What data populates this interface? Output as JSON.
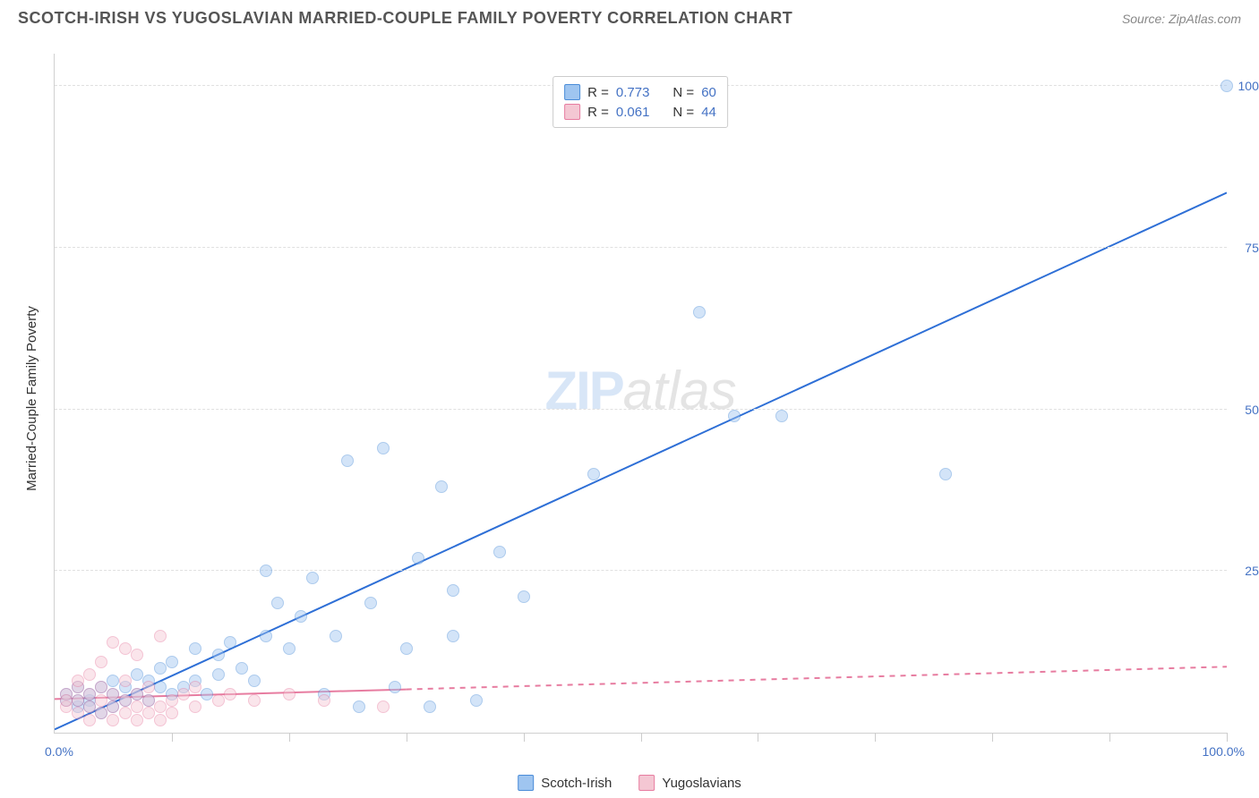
{
  "header": {
    "title": "SCOTCH-IRISH VS YUGOSLAVIAN MARRIED-COUPLE FAMILY POVERTY CORRELATION CHART",
    "source_label": "Source:",
    "source_value": "ZipAtlas.com"
  },
  "ylabel": "Married-Couple Family Poverty",
  "watermark": {
    "part1": "ZIP",
    "part2": "atlas"
  },
  "chart": {
    "type": "scatter",
    "xlim": [
      0,
      100
    ],
    "ylim": [
      0,
      105
    ],
    "grid_color": "#e0e0e0",
    "axis_color": "#d0d0d0",
    "background_color": "#ffffff",
    "tick_label_color": "#4472c4",
    "hgridlines": [
      {
        "y": 25,
        "label": "25.0%"
      },
      {
        "y": 50,
        "label": "50.0%"
      },
      {
        "y": 75,
        "label": "75.0%"
      },
      {
        "y": 100,
        "label": "100.0%"
      }
    ],
    "x_ticks": [
      10,
      20,
      30,
      40,
      50,
      60,
      70,
      80,
      90,
      100
    ],
    "x_origin_label": "0.0%",
    "x_max_label": "100.0%",
    "marker_radius": 7,
    "marker_opacity": 0.45,
    "series": [
      {
        "name": "Scotch-Irish",
        "fill_color": "#9fc5f0",
        "stroke_color": "#4a8cd8",
        "trend": {
          "slope": 0.83,
          "intercept": 0.5,
          "solid_until_x": 100,
          "is_dashed_after": false
        },
        "line_color": "#2e6fd6",
        "line_width": 2,
        "points": [
          [
            1,
            5
          ],
          [
            1,
            6
          ],
          [
            2,
            4
          ],
          [
            2,
            7
          ],
          [
            2,
            5
          ],
          [
            3,
            5
          ],
          [
            3,
            6
          ],
          [
            3,
            4
          ],
          [
            4,
            3
          ],
          [
            4,
            7
          ],
          [
            5,
            6
          ],
          [
            5,
            4
          ],
          [
            5,
            8
          ],
          [
            6,
            7
          ],
          [
            6,
            5
          ],
          [
            7,
            9
          ],
          [
            7,
            6
          ],
          [
            8,
            8
          ],
          [
            8,
            5
          ],
          [
            9,
            10
          ],
          [
            9,
            7
          ],
          [
            10,
            6
          ],
          [
            10,
            11
          ],
          [
            11,
            7
          ],
          [
            12,
            8
          ],
          [
            12,
            13
          ],
          [
            13,
            6
          ],
          [
            14,
            9
          ],
          [
            14,
            12
          ],
          [
            15,
            14
          ],
          [
            16,
            10
          ],
          [
            17,
            8
          ],
          [
            18,
            15
          ],
          [
            18,
            25
          ],
          [
            19,
            20
          ],
          [
            20,
            13
          ],
          [
            21,
            18
          ],
          [
            22,
            24
          ],
          [
            23,
            6
          ],
          [
            24,
            15
          ],
          [
            25,
            42
          ],
          [
            26,
            4
          ],
          [
            27,
            20
          ],
          [
            28,
            44
          ],
          [
            29,
            7
          ],
          [
            30,
            13
          ],
          [
            31,
            27
          ],
          [
            32,
            4
          ],
          [
            33,
            38
          ],
          [
            34,
            22
          ],
          [
            34,
            15
          ],
          [
            36,
            5
          ],
          [
            38,
            28
          ],
          [
            40,
            21
          ],
          [
            46,
            40
          ],
          [
            55,
            65
          ],
          [
            58,
            49
          ],
          [
            62,
            49
          ],
          [
            76,
            40
          ],
          [
            100,
            100
          ]
        ]
      },
      {
        "name": "Yugoslavians",
        "fill_color": "#f4c7d3",
        "stroke_color": "#e77ca0",
        "trend": {
          "slope": 0.05,
          "intercept": 5.2,
          "solid_until_x": 30,
          "is_dashed_after": true
        },
        "line_color": "#e77ca0",
        "line_width": 2,
        "points": [
          [
            1,
            4
          ],
          [
            1,
            6
          ],
          [
            1,
            5
          ],
          [
            2,
            3
          ],
          [
            2,
            5
          ],
          [
            2,
            7
          ],
          [
            2,
            8
          ],
          [
            3,
            2
          ],
          [
            3,
            4
          ],
          [
            3,
            6
          ],
          [
            3,
            9
          ],
          [
            4,
            3
          ],
          [
            4,
            5
          ],
          [
            4,
            7
          ],
          [
            4,
            11
          ],
          [
            5,
            2
          ],
          [
            5,
            4
          ],
          [
            5,
            6
          ],
          [
            5,
            14
          ],
          [
            6,
            3
          ],
          [
            6,
            5
          ],
          [
            6,
            8
          ],
          [
            6,
            13
          ],
          [
            7,
            2
          ],
          [
            7,
            4
          ],
          [
            7,
            6
          ],
          [
            7,
            12
          ],
          [
            8,
            3
          ],
          [
            8,
            5
          ],
          [
            8,
            7
          ],
          [
            9,
            2
          ],
          [
            9,
            4
          ],
          [
            9,
            15
          ],
          [
            10,
            3
          ],
          [
            10,
            5
          ],
          [
            11,
            6
          ],
          [
            12,
            4
          ],
          [
            12,
            7
          ],
          [
            14,
            5
          ],
          [
            15,
            6
          ],
          [
            17,
            5
          ],
          [
            20,
            6
          ],
          [
            23,
            5
          ],
          [
            28,
            4
          ]
        ]
      }
    ]
  },
  "stats_legend": {
    "border_color": "#cccccc",
    "rows": [
      {
        "swatch_fill": "#9fc5f0",
        "swatch_border": "#4a8cd8",
        "r_label": "R =",
        "r_value": "0.773",
        "n_label": "N =",
        "n_value": "60"
      },
      {
        "swatch_fill": "#f4c7d3",
        "swatch_border": "#e77ca0",
        "r_label": "R =",
        "r_value": "0.061",
        "n_label": "N =",
        "n_value": "44"
      }
    ]
  },
  "bottom_legend": {
    "items": [
      {
        "swatch_fill": "#9fc5f0",
        "swatch_border": "#4a8cd8",
        "label": "Scotch-Irish"
      },
      {
        "swatch_fill": "#f4c7d3",
        "swatch_border": "#e77ca0",
        "label": "Yugoslavians"
      }
    ]
  }
}
